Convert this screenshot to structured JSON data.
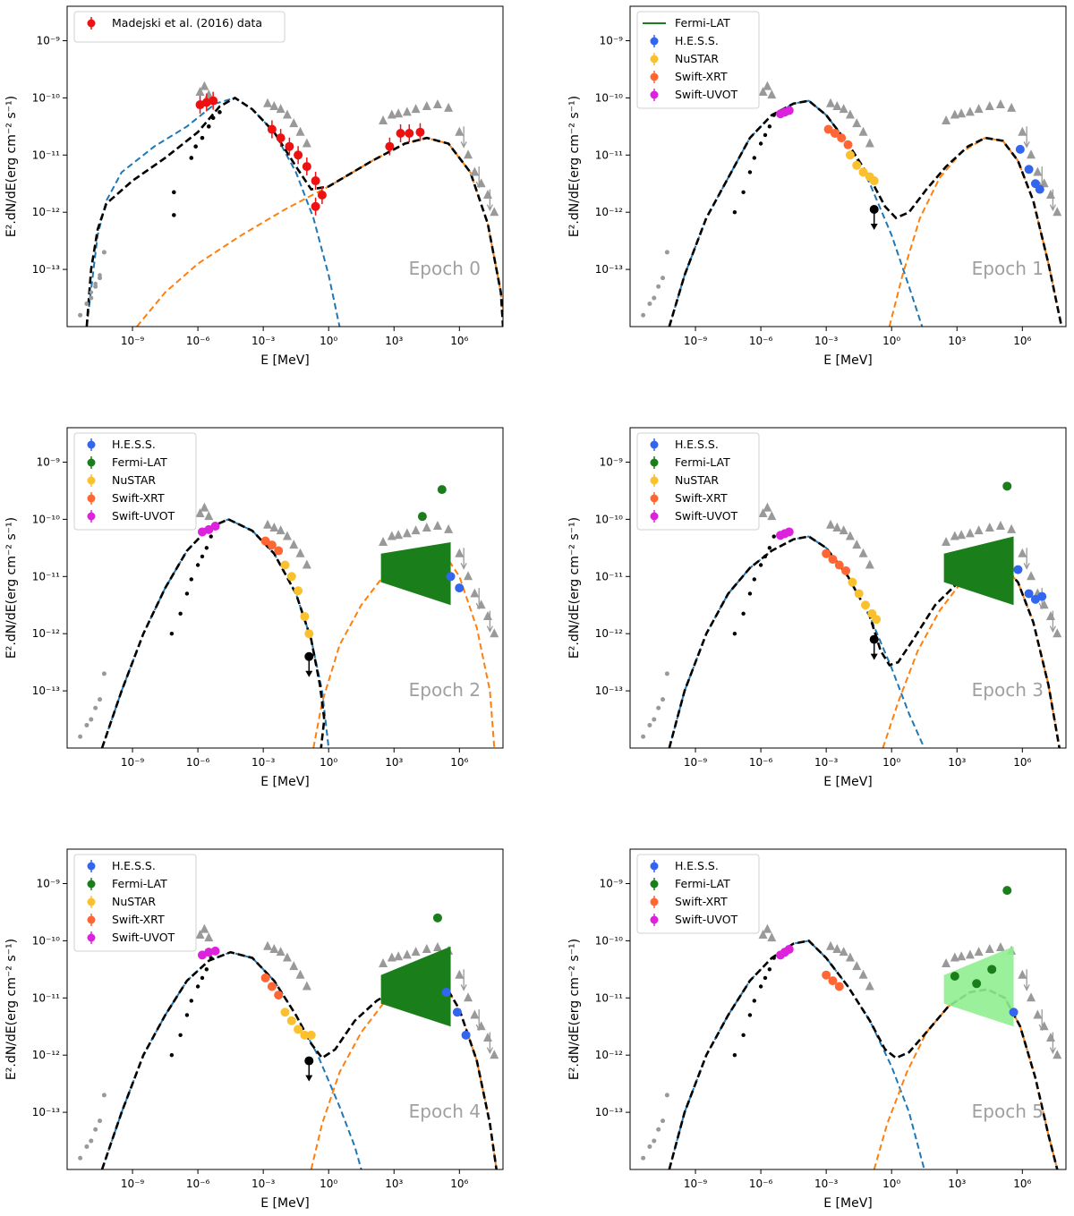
{
  "figure": {
    "axis": {
      "xlabel": "E [MeV]",
      "ylabel": "E².dN/dE(erg cm⁻² s⁻¹)",
      "xscale": "log",
      "yscale": "log",
      "xlim": [
        1e-12,
        100000000.0
      ],
      "ylim": [
        1e-14,
        4e-09
      ],
      "xticks": [
        {
          "v": -9,
          "label": "10⁻⁹"
        },
        {
          "v": -6,
          "label": "10⁻⁶"
        },
        {
          "v": -3,
          "label": "10⁻³"
        },
        {
          "v": 0,
          "label": "10⁰"
        },
        {
          "v": 3,
          "label": "10³"
        },
        {
          "v": 6,
          "label": "10⁶"
        }
      ],
      "yticks": [
        {
          "v": -13,
          "label": "10⁻¹³"
        },
        {
          "v": -12,
          "label": "10⁻¹²"
        },
        {
          "v": -11,
          "label": "10⁻¹¹"
        },
        {
          "v": -10,
          "label": "10⁻¹⁰"
        },
        {
          "v": -9,
          "label": "10⁻⁹"
        }
      ]
    },
    "colors": {
      "hess": "#3366ee",
      "fermi": "#1a7f1a",
      "fermi_light": "#90ee90",
      "nustar": "#fbc02d",
      "xrt": "#ff6633",
      "uvot": "#dd22dd",
      "archival": "#999999",
      "madejski": "#ee1111",
      "total_model": "#000000",
      "synchrotron": "#1f77b4",
      "ic": "#ff7f0e",
      "epoch_text": "#a0a0a0"
    }
  },
  "chart_data": [
    {
      "type": "scatter",
      "title": "Epoch 0",
      "legend": [
        {
          "label": "Madejski et al. (2016) data",
          "key": "madejski"
        }
      ],
      "series": [
        {
          "name": "Madejski et al. (2016) data",
          "key": "madejski",
          "points": [
            [
              -5.9,
              -10.12
            ],
            [
              -5.6,
              -10.08
            ],
            [
              -5.3,
              -10.05
            ],
            [
              -2.6,
              -10.55
            ],
            [
              -2.2,
              -10.7
            ],
            [
              -1.8,
              -10.85
            ],
            [
              -1.4,
              -11.0
            ],
            [
              -1.0,
              -11.2
            ],
            [
              -0.6,
              -11.45
            ],
            [
              -0.3,
              -11.7
            ],
            [
              -0.6,
              -11.9
            ],
            [
              2.8,
              -10.85
            ],
            [
              3.3,
              -10.62
            ],
            [
              3.7,
              -10.62
            ],
            [
              4.2,
              -10.6
            ]
          ]
        },
        {
          "name": "archival optical",
          "key": "black",
          "points": [
            [
              -7.1,
              -11.65
            ],
            [
              -7.1,
              -12.05
            ],
            [
              -6.3,
              -11.05
            ],
            [
              -6.1,
              -10.85
            ],
            [
              -5.8,
              -10.7
            ],
            [
              -5.5,
              -10.5
            ],
            [
              -5.3,
              -10.35
            ],
            [
              -5.0,
              -10.25
            ]
          ]
        },
        {
          "name": "archival radio",
          "key": "archival",
          "points": [
            [
              -11.4,
              -13.8
            ],
            [
              -11.1,
              -13.6
            ],
            [
              -10.9,
              -13.4
            ],
            [
              -10.7,
              -13.25
            ],
            [
              -10.5,
              -13.1
            ],
            [
              -10.3,
              -12.7
            ]
          ]
        }
      ]
    },
    {
      "type": "scatter",
      "title": "Epoch 1",
      "legend": [
        {
          "label": "Fermi-LAT",
          "key": "fermi"
        },
        {
          "label": "H.E.S.S.",
          "key": "hess"
        },
        {
          "label": "NuSTAR",
          "key": "nustar"
        },
        {
          "label": "Swift-XRT",
          "key": "xrt"
        },
        {
          "label": "Swift-UVOT",
          "key": "uvot"
        }
      ],
      "series": [
        {
          "name": "Swift-UVOT",
          "key": "uvot",
          "points": [
            [
              -5.1,
              -10.28
            ],
            [
              -4.9,
              -10.25
            ],
            [
              -4.7,
              -10.22
            ]
          ]
        },
        {
          "name": "Swift-XRT",
          "key": "xrt",
          "points": [
            [
              -2.9,
              -10.55
            ],
            [
              -2.6,
              -10.62
            ],
            [
              -2.3,
              -10.7
            ],
            [
              -2.0,
              -10.82
            ]
          ]
        },
        {
          "name": "NuSTAR",
          "key": "nustar",
          "points": [
            [
              -1.9,
              -11.0
            ],
            [
              -1.6,
              -11.18
            ],
            [
              -1.3,
              -11.3
            ],
            [
              -1.0,
              -11.38
            ],
            [
              -0.8,
              -11.45
            ]
          ]
        },
        {
          "name": "H.E.S.S.",
          "key": "hess",
          "points": [
            [
              5.9,
              -10.9
            ],
            [
              6.3,
              -11.25
            ],
            [
              6.6,
              -11.5
            ],
            [
              6.8,
              -11.6
            ]
          ]
        },
        {
          "name": "upper limit",
          "key": "black",
          "points": [
            [
              -0.8,
              -11.95
            ]
          ]
        }
      ]
    },
    {
      "type": "scatter",
      "title": "Epoch 2",
      "legend": [
        {
          "label": "H.E.S.S.",
          "key": "hess"
        },
        {
          "label": "Fermi-LAT",
          "key": "fermi"
        },
        {
          "label": "NuSTAR",
          "key": "nustar"
        },
        {
          "label": "Swift-XRT",
          "key": "xrt"
        },
        {
          "label": "Swift-UVOT",
          "key": "uvot"
        }
      ],
      "series": [
        {
          "name": "Swift-UVOT",
          "key": "uvot",
          "points": [
            [
              -5.8,
              -10.22
            ],
            [
              -5.5,
              -10.18
            ],
            [
              -5.2,
              -10.12
            ]
          ]
        },
        {
          "name": "Swift-XRT",
          "key": "xrt",
          "points": [
            [
              -2.9,
              -10.38
            ],
            [
              -2.6,
              -10.45
            ],
            [
              -2.3,
              -10.55
            ]
          ]
        },
        {
          "name": "NuSTAR",
          "key": "nustar",
          "points": [
            [
              -2.0,
              -10.8
            ],
            [
              -1.7,
              -11.0
            ],
            [
              -1.4,
              -11.25
            ],
            [
              -1.1,
              -11.7
            ],
            [
              -0.9,
              -12.0
            ]
          ]
        },
        {
          "name": "Fermi-LAT",
          "key": "fermi",
          "points": [
            [
              4.3,
              -9.95
            ],
            [
              5.2,
              -9.48
            ]
          ]
        },
        {
          "name": "H.E.S.S.",
          "key": "hess",
          "points": [
            [
              5.6,
              -11.0
            ],
            [
              6.0,
              -11.2
            ]
          ]
        },
        {
          "name": "upper limit",
          "key": "black",
          "points": [
            [
              -0.9,
              -12.4
            ]
          ]
        }
      ]
    },
    {
      "type": "scatter",
      "title": "Epoch 3",
      "legend": [
        {
          "label": "H.E.S.S.",
          "key": "hess"
        },
        {
          "label": "Fermi-LAT",
          "key": "fermi"
        },
        {
          "label": "NuSTAR",
          "key": "nustar"
        },
        {
          "label": "Swift-XRT",
          "key": "xrt"
        },
        {
          "label": "Swift-UVOT",
          "key": "uvot"
        }
      ],
      "series": [
        {
          "name": "Swift-UVOT",
          "key": "uvot",
          "points": [
            [
              -5.1,
              -10.28
            ],
            [
              -4.9,
              -10.25
            ],
            [
              -4.7,
              -10.22
            ]
          ]
        },
        {
          "name": "Swift-XRT",
          "key": "xrt",
          "points": [
            [
              -3.0,
              -10.6
            ],
            [
              -2.7,
              -10.7
            ],
            [
              -2.4,
              -10.8
            ],
            [
              -2.1,
              -10.9
            ]
          ]
        },
        {
          "name": "NuSTAR",
          "key": "nustar",
          "points": [
            [
              -1.8,
              -11.1
            ],
            [
              -1.5,
              -11.3
            ],
            [
              -1.2,
              -11.5
            ],
            [
              -0.9,
              -11.65
            ],
            [
              -0.7,
              -11.75
            ]
          ]
        },
        {
          "name": "Fermi-LAT",
          "key": "fermi",
          "points": [
            [
              5.3,
              -9.42
            ]
          ]
        },
        {
          "name": "H.E.S.S.",
          "key": "hess",
          "points": [
            [
              5.8,
              -10.88
            ],
            [
              6.3,
              -11.3
            ],
            [
              6.6,
              -11.4
            ],
            [
              6.9,
              -11.35
            ]
          ]
        },
        {
          "name": "upper limit",
          "key": "black",
          "points": [
            [
              -0.8,
              -12.1
            ]
          ]
        }
      ]
    },
    {
      "type": "scatter",
      "title": "Epoch 4",
      "legend": [
        {
          "label": "H.E.S.S.",
          "key": "hess"
        },
        {
          "label": "Fermi-LAT",
          "key": "fermi"
        },
        {
          "label": "NuSTAR",
          "key": "nustar"
        },
        {
          "label": "Swift-XRT",
          "key": "xrt"
        },
        {
          "label": "Swift-UVOT",
          "key": "uvot"
        }
      ],
      "series": [
        {
          "name": "Swift-UVOT",
          "key": "uvot",
          "points": [
            [
              -5.8,
              -10.25
            ],
            [
              -5.5,
              -10.2
            ],
            [
              -5.2,
              -10.18
            ]
          ]
        },
        {
          "name": "Swift-XRT",
          "key": "xrt",
          "points": [
            [
              -2.9,
              -10.65
            ],
            [
              -2.6,
              -10.8
            ],
            [
              -2.3,
              -10.95
            ]
          ]
        },
        {
          "name": "NuSTAR",
          "key": "nustar",
          "points": [
            [
              -2.0,
              -11.25
            ],
            [
              -1.7,
              -11.4
            ],
            [
              -1.4,
              -11.55
            ],
            [
              -1.1,
              -11.65
            ],
            [
              -0.8,
              -11.65
            ]
          ]
        },
        {
          "name": "Fermi-LAT",
          "key": "fermi",
          "points": [
            [
              5.0,
              -9.6
            ]
          ]
        },
        {
          "name": "H.E.S.S.",
          "key": "hess",
          "points": [
            [
              5.4,
              -10.9
            ],
            [
              5.9,
              -11.25
            ],
            [
              6.3,
              -11.65
            ]
          ]
        },
        {
          "name": "upper limit",
          "key": "black",
          "points": [
            [
              -0.9,
              -12.1
            ]
          ]
        }
      ]
    },
    {
      "type": "scatter",
      "title": "Epoch 5",
      "legend": [
        {
          "label": "H.E.S.S.",
          "key": "hess"
        },
        {
          "label": "Fermi-LAT",
          "key": "fermi"
        },
        {
          "label": "Swift-XRT",
          "key": "xrt"
        },
        {
          "label": "Swift-UVOT",
          "key": "uvot"
        }
      ],
      "series": [
        {
          "name": "Swift-UVOT",
          "key": "uvot",
          "points": [
            [
              -5.1,
              -10.25
            ],
            [
              -4.9,
              -10.2
            ],
            [
              -4.7,
              -10.15
            ]
          ]
        },
        {
          "name": "Swift-XRT",
          "key": "xrt",
          "points": [
            [
              -3.0,
              -10.6
            ],
            [
              -2.7,
              -10.7
            ],
            [
              -2.4,
              -10.8
            ]
          ]
        },
        {
          "name": "Fermi-LAT",
          "key": "fermi",
          "points": [
            [
              2.9,
              -10.62
            ],
            [
              3.9,
              -10.75
            ],
            [
              4.6,
              -10.5
            ],
            [
              5.3,
              -9.12
            ]
          ]
        },
        {
          "name": "H.E.S.S.",
          "key": "hess",
          "points": [
            [
              5.6,
              -11.25
            ]
          ]
        }
      ]
    }
  ]
}
